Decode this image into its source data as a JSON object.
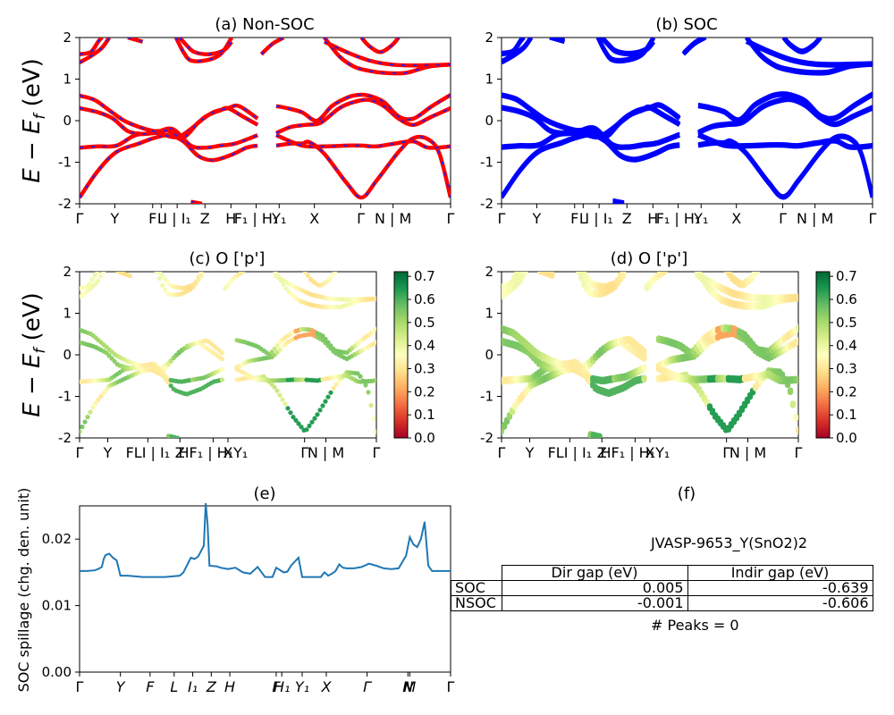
{
  "ylabel_top": "E − E",
  "ylabel_sub": "f",
  "ylabel_unit": " (eV)",
  "kpath_labels": [
    "Γ",
    "Y",
    "F",
    "L",
    "I | I₁",
    "Z",
    "H",
    "F₁ | H₁",
    "Y₁",
    "X",
    "Γ",
    "N | M",
    "Γ"
  ],
  "kpath_labels_e": [
    "Γ",
    "Y",
    "F",
    "L",
    "I₁",
    "Z",
    "H",
    "F",
    "H₁",
    "Y₁",
    "X",
    "Γ",
    "N",
    "M",
    "Γ"
  ],
  "colorbar_ticks": [
    "0.0",
    "0.1",
    "0.2",
    "0.3",
    "0.4",
    "0.5",
    "0.6",
    "0.7"
  ],
  "colors": {
    "nonsoc_line": "#ff0000",
    "nonsoc_dash": "#2222ee",
    "soc_line": "#0000ff",
    "spillage_line": "#1f77b4"
  },
  "chart_data": [
    {
      "id": "a",
      "type": "line",
      "title": "(a) Non-SOC",
      "ylabel": "E − Ef (eV)",
      "ylim": [
        -2,
        2
      ],
      "yticks": [
        -2,
        -1,
        0,
        1,
        2
      ],
      "xticks": [
        "Γ",
        "Y",
        "F",
        "L",
        "I",
        "| I₁",
        "Z",
        "H",
        "F₁",
        "| H₁",
        "Y₁",
        "X",
        "Γ",
        "N",
        "| M",
        "Γ"
      ]
    },
    {
      "id": "b",
      "type": "line",
      "title": "(b) SOC",
      "ylim": [
        -2,
        2
      ],
      "yticks": [
        -2,
        -1,
        0,
        1,
        2
      ],
      "xticks": [
        "Γ",
        "Y",
        "F",
        "L",
        "I",
        "| I₁",
        "Z",
        "H",
        "F₁",
        "| H₁",
        "Y₁",
        "X",
        "Γ",
        "N",
        "| M",
        "Γ"
      ]
    },
    {
      "id": "c",
      "type": "scatter",
      "title": "(c)  O ['p']",
      "ylabel": "E − Ef (eV)",
      "ylim": [
        -2,
        2
      ],
      "yticks": [
        -2,
        -1,
        0,
        1,
        2
      ],
      "colorbar": {
        "range": [
          0.0,
          0.7
        ],
        "ticks": [
          0.0,
          0.1,
          0.2,
          0.3,
          0.4,
          0.5,
          0.6,
          0.7
        ],
        "cmap": "RdYlGn"
      }
    },
    {
      "id": "d",
      "type": "scatter",
      "title": "(d) O ['p']",
      "ylim": [
        -2,
        2
      ],
      "yticks": [
        -2,
        -1,
        0,
        1,
        2
      ],
      "colorbar": {
        "range": [
          0.0,
          0.7
        ],
        "ticks": [
          0.0,
          0.1,
          0.2,
          0.3,
          0.4,
          0.5,
          0.6,
          0.7
        ],
        "cmap": "RdYlGn"
      }
    },
    {
      "id": "e",
      "type": "line",
      "title": "(e)",
      "ylabel": "SOC spillage (chg. den. unit)",
      "ylim": [
        0.0,
        0.025
      ],
      "yticks": [
        "0.00",
        "0.01",
        "0.02"
      ],
      "x": [
        0,
        0.02,
        0.04,
        0.05,
        0.06,
        0.065,
        0.07,
        0.08,
        0.09,
        0.1,
        0.11,
        0.13,
        0.15,
        0.17,
        0.2,
        0.23,
        0.25,
        0.27,
        0.28,
        0.3,
        0.31,
        0.32,
        0.335,
        0.34,
        0.345,
        0.35,
        0.37,
        0.38,
        0.4,
        0.42,
        0.44,
        0.46,
        0.48,
        0.5,
        0.51,
        0.52,
        0.53,
        0.55,
        0.56,
        0.57,
        0.59,
        0.6,
        0.61,
        0.63,
        0.64,
        0.65,
        0.66,
        0.67,
        0.68,
        0.69,
        0.7,
        0.71,
        0.72,
        0.74,
        0.76,
        0.78,
        0.8,
        0.82,
        0.84,
        0.86,
        0.88,
        0.89,
        0.9,
        0.91,
        0.92,
        0.93,
        0.94,
        0.95,
        0.96,
        0.97,
        0.98,
        0.99,
        1.0
      ],
      "y": [
        0.0152,
        0.0152,
        0.0153,
        0.0155,
        0.0158,
        0.017,
        0.0176,
        0.0178,
        0.0172,
        0.0168,
        0.0145,
        0.0145,
        0.0144,
        0.0143,
        0.0143,
        0.0143,
        0.0144,
        0.0145,
        0.015,
        0.0172,
        0.017,
        0.0174,
        0.019,
        0.0254,
        0.0222,
        0.016,
        0.0159,
        0.0157,
        0.0155,
        0.0157,
        0.015,
        0.0148,
        0.0158,
        0.0143,
        0.0143,
        0.0143,
        0.0157,
        0.015,
        0.0151,
        0.016,
        0.0172,
        0.0143,
        0.0143,
        0.0143,
        0.0143,
        0.0143,
        0.015,
        0.0145,
        0.0148,
        0.0152,
        0.0162,
        0.0157,
        0.0156,
        0.0156,
        0.0158,
        0.0163,
        0.016,
        0.0156,
        0.0155,
        0.0156,
        0.0175,
        0.0203,
        0.0192,
        0.0188,
        0.02,
        0.0226,
        0.016,
        0.0152,
        0.0152,
        0.0152,
        0.0152,
        0.0152,
        0.0152
      ],
      "xticks": [
        "Γ",
        "Y",
        "F",
        "L",
        "I₁",
        "Z",
        "H",
        "F",
        "H₁",
        "Y₁",
        "X",
        "Γ",
        "N",
        "M",
        "Γ"
      ]
    }
  ],
  "panel_f": {
    "title": "(f)",
    "material": "JVASP-9653_Y(SnO2)2",
    "table_header": [
      "Dir gap (eV)",
      "Indir gap (eV)"
    ],
    "rows": [
      {
        "label": "SOC",
        "dir": "0.005",
        "indir": "-0.639"
      },
      {
        "label": "NSOC",
        "dir": "-0.001",
        "indir": "-0.606"
      }
    ],
    "peaks": "# Peaks = 0"
  }
}
